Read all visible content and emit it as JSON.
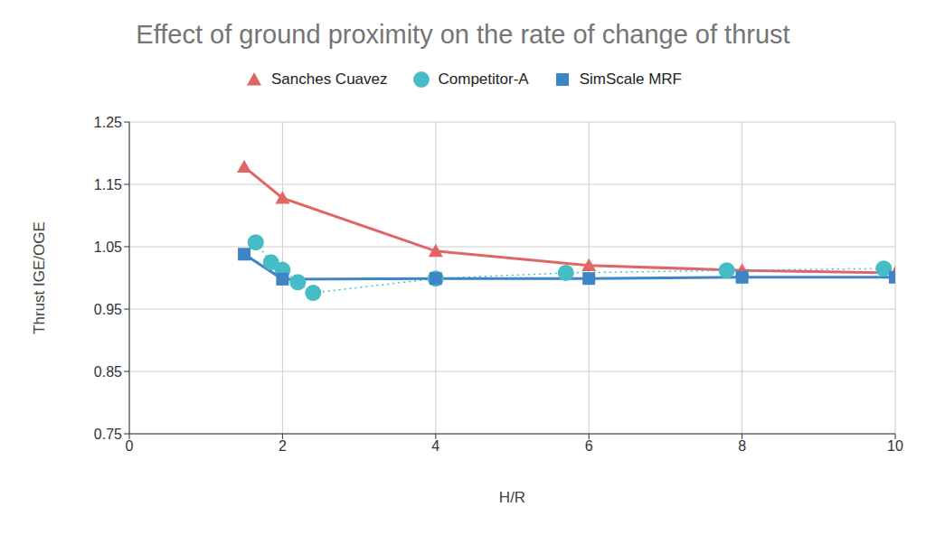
{
  "chart_data": {
    "type": "line",
    "title": "Effect of ground proximity on the rate of change of thrust",
    "x_label": "H/R",
    "y_label": "Thrust IGE/OGE",
    "xlim": [
      0,
      10
    ],
    "xticks": [
      0,
      2,
      4,
      6,
      8,
      10
    ],
    "ylim": [
      0.75,
      1.25
    ],
    "yticks": [
      0.75,
      0.85,
      0.95,
      1.05,
      1.15,
      1.25
    ],
    "grid": true,
    "legend": "top",
    "series": [
      {
        "name": "Sanches Cuavez",
        "color": "#e06666",
        "marker": "triangle",
        "line_style": "solid",
        "x": [
          1.5,
          2,
          4,
          6,
          8,
          10
        ],
        "values": [
          1.178,
          1.128,
          1.043,
          1.02,
          1.012,
          1.008
        ]
      },
      {
        "name": "Competitor-A",
        "color": "#46bdc6",
        "marker": "circle",
        "line_style": "dotted",
        "x": [
          1.65,
          1.85,
          2,
          2.2,
          2.4,
          4,
          5.7,
          7.8,
          9.85
        ],
        "values": [
          1.057,
          1.025,
          1.013,
          0.993,
          0.976,
          0.999,
          1.008,
          1.012,
          1.015
        ]
      },
      {
        "name": "SimScale MRF",
        "color": "#3d85c6",
        "marker": "square",
        "line_style": "solid",
        "x": [
          1.5,
          2,
          4,
          6,
          8,
          10
        ],
        "values": [
          1.038,
          0.998,
          0.999,
          0.999,
          1.001,
          1.001
        ]
      }
    ]
  }
}
